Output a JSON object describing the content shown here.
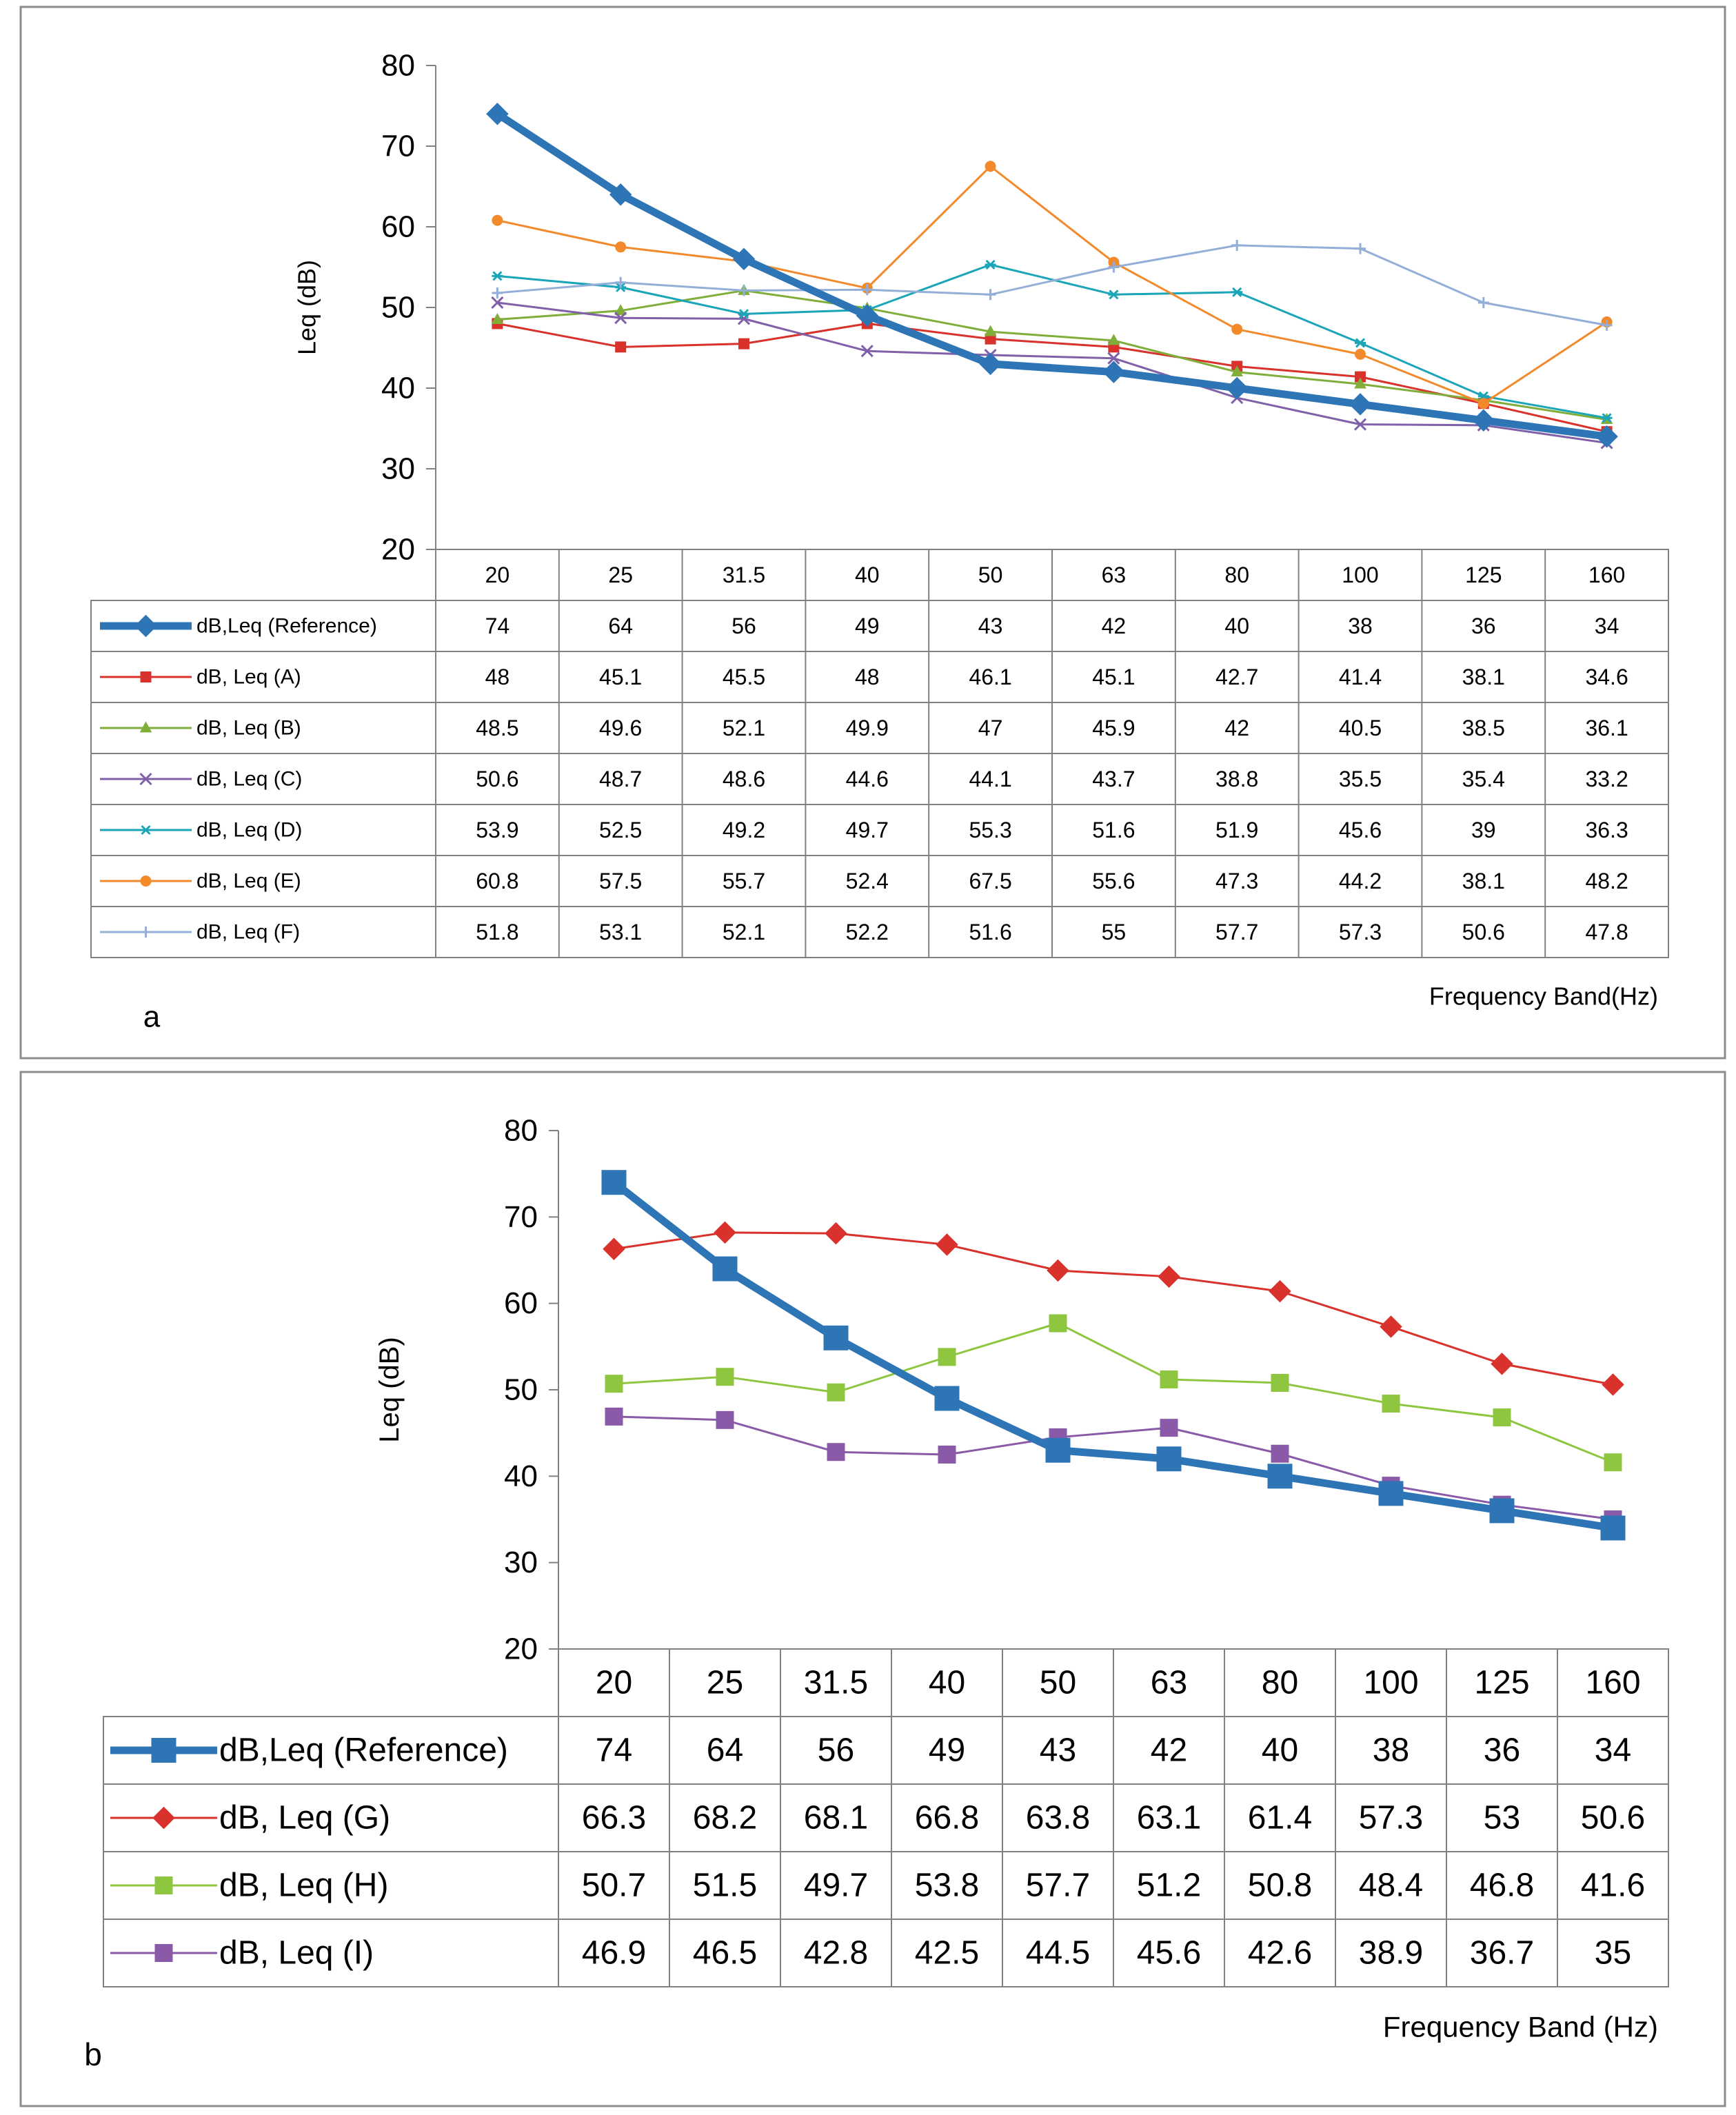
{
  "chart_data": [
    {
      "panel_label": "a",
      "type": "line",
      "ylabel": "Leq (dB)",
      "xlabel": "Frequency Band(Hz)",
      "ylim": [
        20,
        80
      ],
      "yticks": [
        20,
        30,
        40,
        50,
        60,
        70,
        80
      ],
      "categories": [
        "20",
        "25",
        "31.5",
        "40",
        "50",
        "63",
        "80",
        "100",
        "125",
        "160"
      ],
      "series": [
        {
          "name": "dB,Leq (Reference)",
          "color": "#2e75b6",
          "marker": "diamond",
          "thick": true,
          "values": [
            74,
            64,
            56,
            49,
            43,
            42,
            40,
            38,
            36,
            34
          ]
        },
        {
          "name": "dB, Leq (A)",
          "color": "#d9312b",
          "marker": "square",
          "values": [
            48,
            45.1,
            45.5,
            48,
            46.1,
            45.1,
            42.7,
            41.4,
            38.1,
            34.6
          ]
        },
        {
          "name": "dB, Leq (B)",
          "color": "#7fae3a",
          "marker": "triangle",
          "values": [
            48.5,
            49.6,
            52.1,
            49.9,
            47,
            45.9,
            42,
            40.5,
            38.5,
            36.1
          ]
        },
        {
          "name": "dB, Leq (C)",
          "color": "#8060a8",
          "marker": "x",
          "values": [
            50.6,
            48.7,
            48.6,
            44.6,
            44.1,
            43.7,
            38.8,
            35.5,
            35.4,
            33.2
          ]
        },
        {
          "name": "dB, Leq (D)",
          "color": "#1aa5b8",
          "marker": "star",
          "values": [
            53.9,
            52.5,
            49.2,
            49.7,
            55.3,
            51.6,
            51.9,
            45.6,
            39,
            36.3
          ]
        },
        {
          "name": "dB, Leq (E)",
          "color": "#f28a2c",
          "marker": "circle",
          "values": [
            60.8,
            57.5,
            55.7,
            52.4,
            67.5,
            55.6,
            47.3,
            44.2,
            38.1,
            48.2
          ]
        },
        {
          "name": "dB, Leq (F)",
          "color": "#93afd8",
          "marker": "plus",
          "values": [
            51.8,
            53.1,
            52.1,
            52.2,
            51.6,
            55,
            57.7,
            57.3,
            50.6,
            47.8
          ]
        }
      ]
    },
    {
      "panel_label": "b",
      "type": "line",
      "ylabel": "Leq (dB)",
      "xlabel": "Frequency Band (Hz)",
      "ylim": [
        20,
        80
      ],
      "yticks": [
        20,
        30,
        40,
        50,
        60,
        70,
        80
      ],
      "categories": [
        "20",
        "25",
        "31.5",
        "40",
        "50",
        "63",
        "80",
        "100",
        "125",
        "160"
      ],
      "series": [
        {
          "name": "dB,Leq (Reference)",
          "color": "#2e75b6",
          "marker": "square",
          "thick": true,
          "values": [
            74,
            64,
            56,
            49,
            43,
            42,
            40,
            38,
            36,
            34
          ]
        },
        {
          "name": "dB, Leq (G)",
          "color": "#d9312b",
          "marker": "diamond",
          "values": [
            66.3,
            68.2,
            68.1,
            66.8,
            63.8,
            63.1,
            61.4,
            57.3,
            53,
            50.6
          ]
        },
        {
          "name": "dB, Leq (H)",
          "color": "#8fc63f",
          "marker": "square",
          "values": [
            50.7,
            51.5,
            49.7,
            53.8,
            57.7,
            51.2,
            50.8,
            48.4,
            46.8,
            41.6
          ]
        },
        {
          "name": "dB, Leq (I)",
          "color": "#8a5aa8",
          "marker": "square",
          "values": [
            46.9,
            46.5,
            42.8,
            42.5,
            44.5,
            45.6,
            42.6,
            38.9,
            36.7,
            35
          ]
        }
      ]
    }
  ]
}
